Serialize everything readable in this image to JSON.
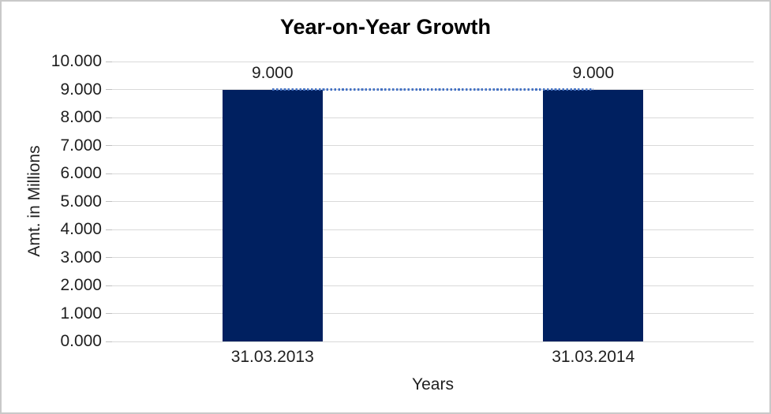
{
  "chart_data": {
    "type": "bar",
    "title": "Year-on-Year Growth",
    "xlabel": "Years",
    "ylabel": "Amt. in Millions",
    "categories": [
      "31.03.2013",
      "31.03.2014"
    ],
    "values": [
      9,
      9
    ],
    "data_labels": [
      "9.000",
      "9.000"
    ],
    "ylim": [
      0,
      10
    ],
    "y_tick_step": 1,
    "y_ticks": [
      {
        "value": 10,
        "label": "10.000"
      },
      {
        "value": 9,
        "label": "9.000"
      },
      {
        "value": 8,
        "label": "8.000"
      },
      {
        "value": 7,
        "label": "7.000"
      },
      {
        "value": 6,
        "label": "6.000"
      },
      {
        "value": 5,
        "label": "5.000"
      },
      {
        "value": 4,
        "label": "4.000"
      },
      {
        "value": 3,
        "label": "3.000"
      },
      {
        "value": 2,
        "label": "2.000"
      },
      {
        "value": 1,
        "label": "1.000"
      },
      {
        "value": 0,
        "label": "0.000"
      }
    ],
    "grid": "horizontal",
    "legend": "none",
    "trendline": {
      "style": "dotted",
      "from_category": "31.03.2013",
      "to_category": "31.03.2014",
      "value": 9
    },
    "colors": {
      "bar": "#002060",
      "trendline": "#4472C4",
      "gridline": "#D9D9D9",
      "tick_mark": "#BFBFBF",
      "text": "#1f1f1f",
      "title": "#000000",
      "border": "#C9C9C9",
      "background": "#FFFFFF"
    }
  }
}
